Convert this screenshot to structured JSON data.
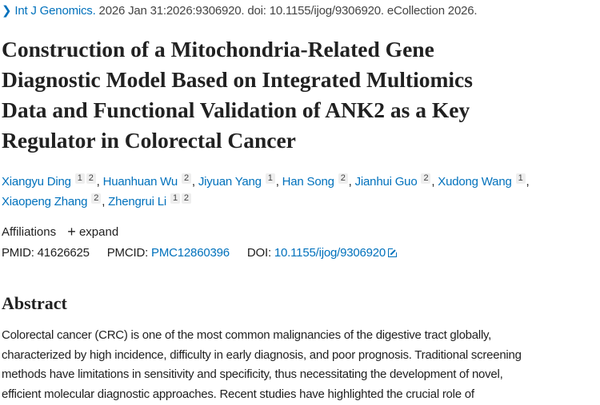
{
  "citation": {
    "journal": "Int J Genomics.",
    "details": "2026 Jan 31:2026:9306920. doi: 10.1155/ijog/9306920. eCollection 2026."
  },
  "title_lines": [
    "Construction of a Mitochondria-Related Gene",
    "Diagnostic Model Based on Integrated Multiomics",
    "Data and Functional Validation of ANK2 as a Key",
    "Regulator in Colorectal Cancer"
  ],
  "authors": [
    {
      "name": "Xiangyu Ding",
      "affs": [
        "1",
        "2"
      ]
    },
    {
      "name": "Huanhuan Wu",
      "affs": [
        "2"
      ]
    },
    {
      "name": "Jiyuan Yang",
      "affs": [
        "1"
      ]
    },
    {
      "name": "Han Song",
      "affs": [
        "2"
      ]
    },
    {
      "name": "Jianhui Guo",
      "affs": [
        "2"
      ]
    },
    {
      "name": "Xudong Wang",
      "affs": [
        "1"
      ]
    },
    {
      "name": "Xiaopeng Zhang",
      "affs": [
        "2"
      ]
    },
    {
      "name": "Zhengrui Li",
      "affs": [
        "1",
        "2"
      ]
    }
  ],
  "affiliations": {
    "label": "Affiliations",
    "expand": "expand"
  },
  "ids": {
    "pmid_label": "PMID:",
    "pmid": "41626625",
    "pmcid_label": "PMCID:",
    "pmcid": "PMC12860396",
    "doi_label": "DOI:",
    "doi": "10.1155/ijog/9306920"
  },
  "abstract": {
    "heading": "Abstract",
    "lines": [
      "Colorectal cancer (CRC) is one of the most common malignancies of the digestive tract globally,",
      "characterized by high incidence, difficulty in early diagnosis, and poor prognosis. Traditional screening",
      "methods have limitations in sensitivity and specificity, thus necessitating the development of novel,",
      "efficient molecular diagnostic approaches. Recent studies have highlighted the crucial role of"
    ]
  },
  "colors": {
    "link": "#0071bc",
    "text": "#212121"
  }
}
